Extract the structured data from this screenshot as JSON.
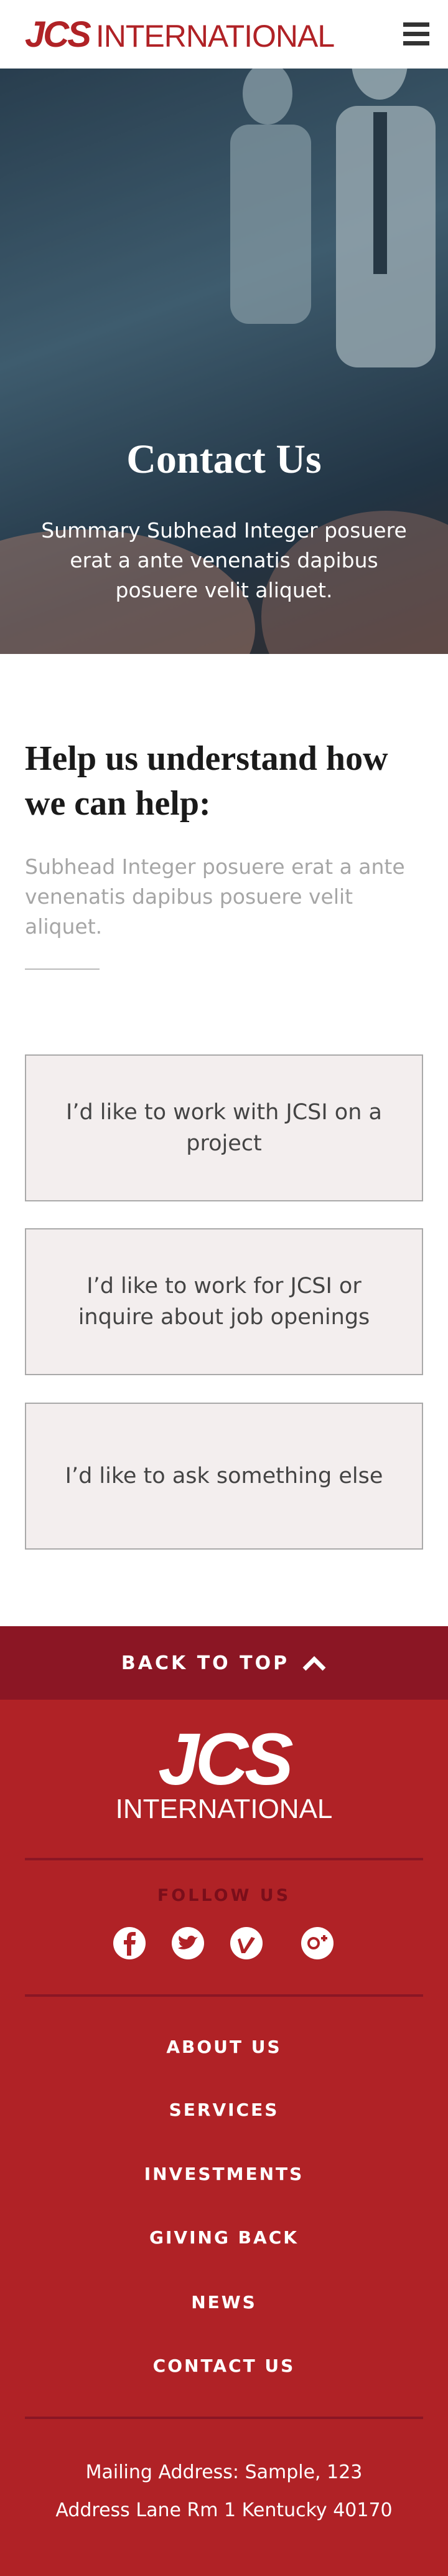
{
  "header": {
    "logo_mark": "JCS",
    "logo_text": "INTERNATIONAL"
  },
  "hero": {
    "title": "Contact Us",
    "subtitle": "Summary Subhead Integer posuere erat a ante venenatis dapibus posuere velit aliquet."
  },
  "intro": {
    "title": "Help us understand how we can help:",
    "subtitle": "Subhead Integer posuere erat a ante venenatis dapibus posuere velit aliquet."
  },
  "options": [
    "I’d like to work with JCSI on a project",
    "I’d like to work for JCSI or inquire about job openings",
    "I’d like to ask something else"
  ],
  "footer": {
    "back_to_top": "BACK TO TOP",
    "logo_mark": "JCS",
    "logo_text": "INTERNATIONAL",
    "follow_us": "FOLLOW US",
    "nav": [
      "ABOUT US",
      "SERVICES",
      "INVESTMENTS",
      "GIVING BACK",
      "NEWS",
      "CONTACT US"
    ],
    "address": [
      "Mailing Address: Sample, 123",
      "Address Lane Rm 1 Kentucky 40170"
    ]
  }
}
